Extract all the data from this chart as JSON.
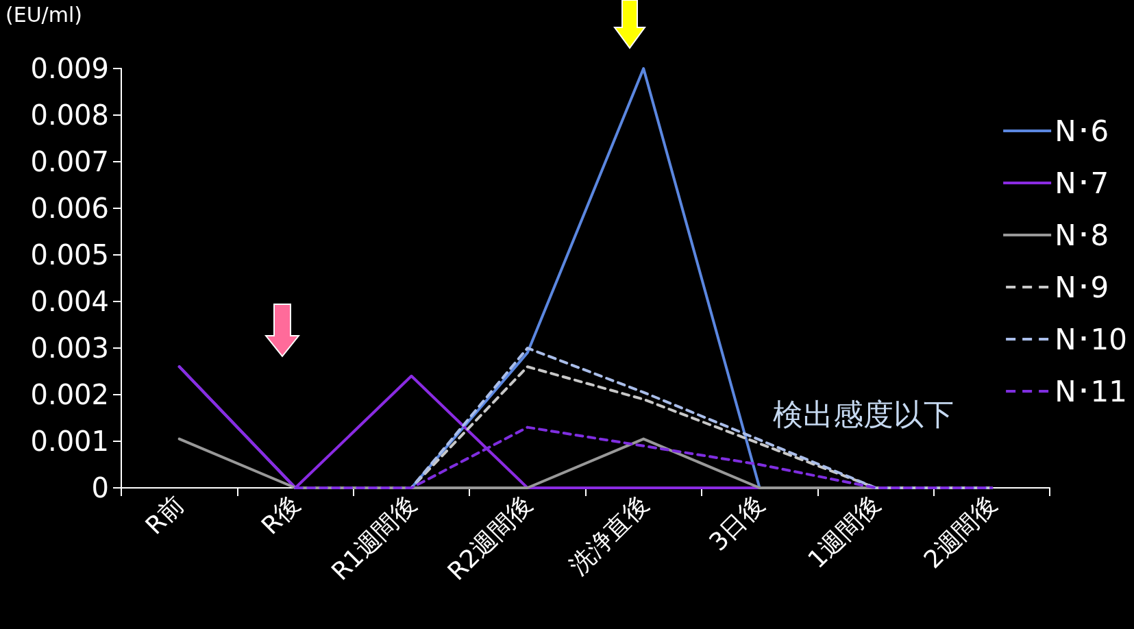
{
  "chart_data": {
    "type": "line",
    "ylabel": "(EU/ml)",
    "categories": [
      "R前",
      "R後",
      "R1週間後",
      "R2週間後",
      "洗浄直後",
      "3日後",
      "1週間後",
      "2週間後"
    ],
    "series": [
      {
        "name": "N･6",
        "color": "#5b87e0",
        "line_style": "solid",
        "values": [
          0.0026,
          0,
          0,
          0.0029,
          0.009,
          0,
          0,
          0
        ]
      },
      {
        "name": "N･7",
        "color": "#8a2be2",
        "line_style": "solid",
        "values": [
          0.0026,
          0,
          0.0024,
          0,
          0,
          0,
          0,
          0
        ]
      },
      {
        "name": "N･8",
        "color": "#999999",
        "line_style": "solid",
        "values": [
          0.00105,
          0,
          0,
          0,
          0.00105,
          0,
          0,
          0
        ]
      },
      {
        "name": "N･9",
        "color": "#c8c8c8",
        "line_style": "dashed",
        "values": [
          null,
          0,
          0,
          0.0026,
          0.0019,
          0.00095,
          0,
          0
        ]
      },
      {
        "name": "N･10",
        "color": "#a9bde9",
        "line_style": "dashed",
        "values": [
          null,
          0,
          0,
          0.003,
          0.00205,
          0.00103,
          0,
          0
        ]
      },
      {
        "name": "N･11",
        "color": "#7f2ee0",
        "line_style": "dashed",
        "values": [
          null,
          0,
          0,
          0.0013,
          0.0009,
          0.0005,
          0,
          0
        ]
      }
    ],
    "ylim": [
      0,
      0.009
    ],
    "yticks": [
      0,
      0.001,
      0.002,
      0.003,
      0.004,
      0.005,
      0.006,
      0.007,
      0.008,
      0.009
    ],
    "annotations": [
      "検出感度以下"
    ],
    "grid": false,
    "legend": "right",
    "marker": "none"
  }
}
